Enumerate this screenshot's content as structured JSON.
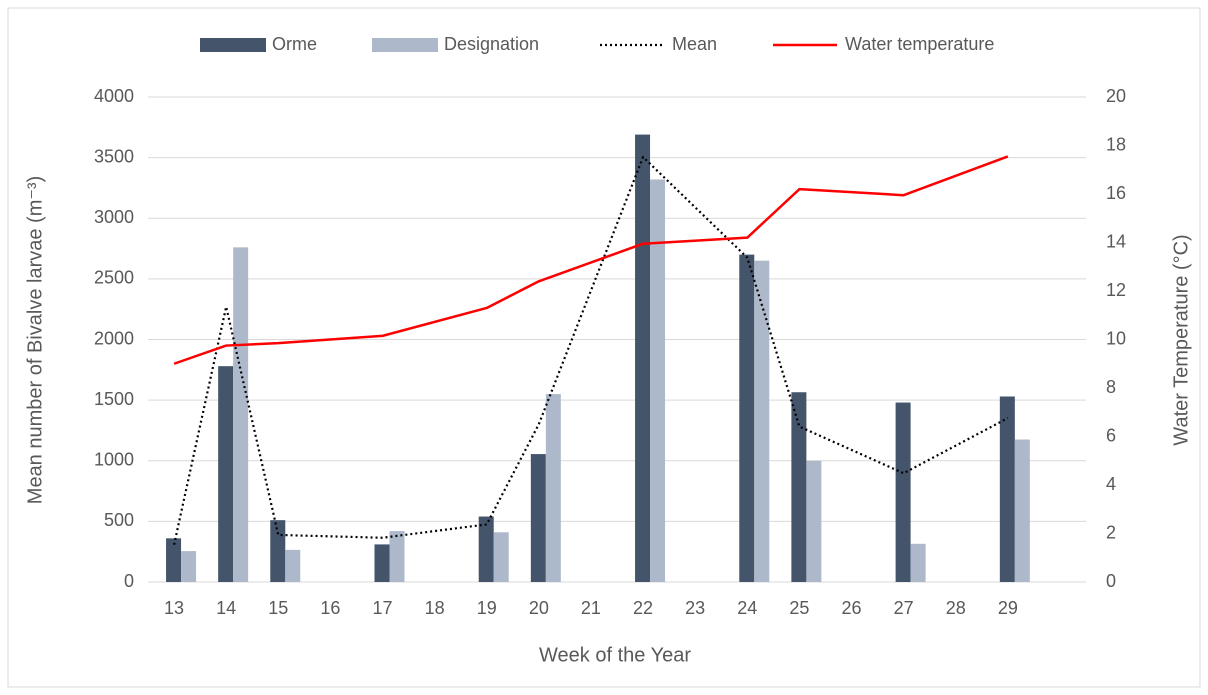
{
  "chart_data": {
    "type": "bar_line",
    "categories": [
      "13",
      "14",
      "15",
      "16",
      "17",
      "18",
      "19",
      "20",
      "21",
      "22",
      "23",
      "24",
      "25",
      "26",
      "27",
      "28",
      "29",
      null
    ],
    "series": [
      {
        "name": "Orme",
        "type": "bar",
        "color": "#44546a",
        "values": [
          360,
          1780,
          510,
          null,
          310,
          null,
          540,
          1055,
          null,
          3690,
          null,
          2700,
          1565,
          null,
          1480,
          null,
          1530,
          null
        ]
      },
      {
        "name": "Designation",
        "type": "bar",
        "color": "#adb9ca",
        "values": [
          255,
          2760,
          265,
          null,
          420,
          null,
          410,
          1550,
          null,
          3320,
          null,
          2650,
          1000,
          null,
          315,
          null,
          1175,
          null
        ]
      },
      {
        "name": "Mean",
        "type": "line",
        "dash": "dotted",
        "color": "#000000",
        "values": [
          307,
          2270,
          388,
          null,
          365,
          null,
          475,
          1302,
          null,
          3505,
          null,
          2675,
          1282,
          null,
          897,
          null,
          1352,
          null
        ]
      },
      {
        "name": "Water temperature",
        "type": "line",
        "axis": "y2",
        "color": "#ff0000",
        "values": [
          9.0,
          9.75,
          9.85,
          null,
          10.15,
          null,
          11.3,
          12.4,
          null,
          13.95,
          null,
          14.2,
          16.2,
          null,
          15.95,
          null,
          17.55,
          null
        ]
      }
    ],
    "span_gaps": true,
    "xlabel": "Week of the Year",
    "ylabel": "Mean number of Bivalve larvae (m⁻³)",
    "y2label": "Water Temperature (°C)",
    "ylim": [
      0,
      4000
    ],
    "yticks": [
      0,
      500,
      1000,
      1500,
      2000,
      2500,
      3000,
      3500,
      4000
    ],
    "y2lim": [
      0,
      20
    ],
    "y2ticks": [
      0,
      2,
      4,
      6,
      8,
      10,
      12,
      14,
      16,
      18,
      20
    ],
    "grid": true,
    "legend": "top"
  }
}
